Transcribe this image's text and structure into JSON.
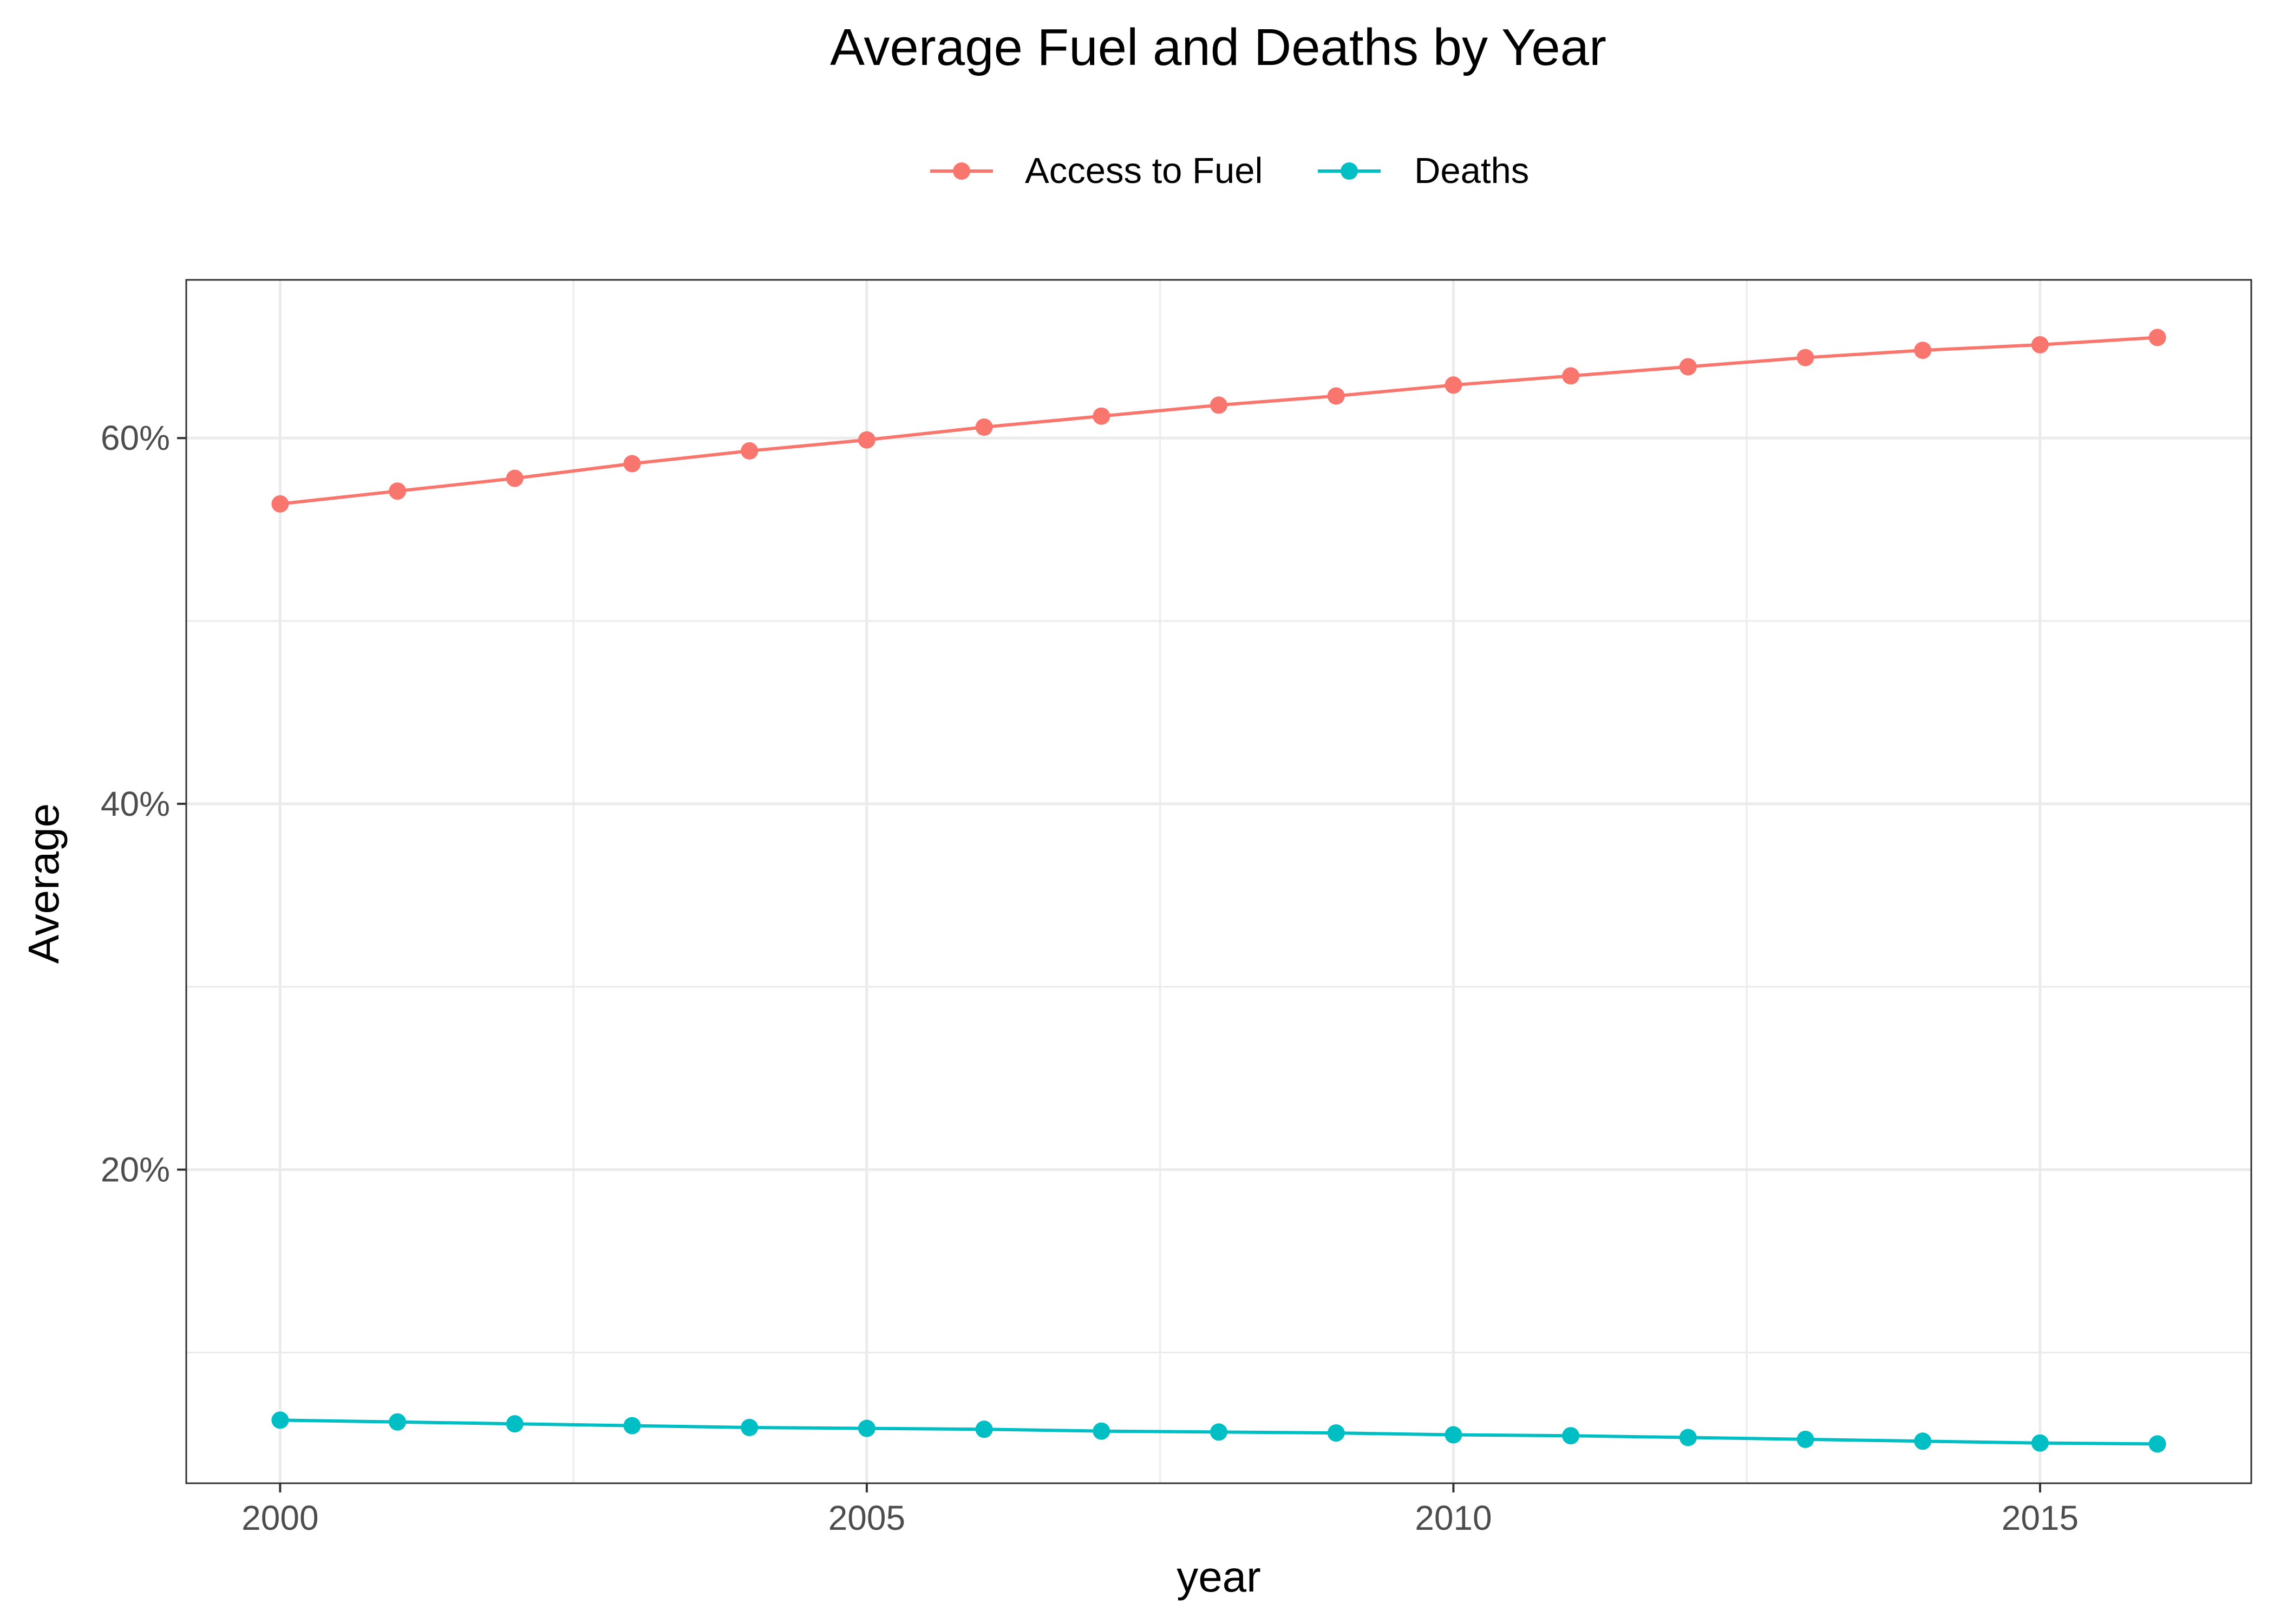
{
  "chart_data": {
    "type": "line",
    "title": "Average Fuel and Deaths by Year",
    "xlabel": "year",
    "ylabel": "Average",
    "x": [
      2000,
      2001,
      2002,
      2003,
      2004,
      2005,
      2006,
      2007,
      2008,
      2009,
      2010,
      2011,
      2012,
      2013,
      2014,
      2015,
      2016
    ],
    "series": [
      {
        "name": "Access to Fuel",
        "color": "#F8766D",
        "values": [
          0.564,
          0.571,
          0.578,
          0.586,
          0.593,
          0.599,
          0.606,
          0.612,
          0.618,
          0.623,
          0.629,
          0.634,
          0.639,
          0.644,
          0.648,
          0.651,
          0.655
        ]
      },
      {
        "name": "Deaths",
        "color": "#00BFC4",
        "values": [
          0.063,
          0.062,
          0.061,
          0.06,
          0.059,
          0.0585,
          0.058,
          0.057,
          0.0565,
          0.056,
          0.055,
          0.0545,
          0.0535,
          0.0525,
          0.0515,
          0.0505,
          0.05
        ]
      }
    ],
    "x_ticks": [
      2000,
      2005,
      2010,
      2015
    ],
    "x_tick_labels": [
      "2000",
      "2005",
      "2010",
      "2015"
    ],
    "y_ticks": [
      0.2,
      0.4,
      0.6
    ],
    "y_tick_labels": [
      "20%",
      "40%",
      "60%"
    ],
    "xlim": [
      1999.2,
      2016.8
    ],
    "ylim": [
      0.0285,
      0.6865
    ],
    "grid": true,
    "legend_position": "top"
  }
}
